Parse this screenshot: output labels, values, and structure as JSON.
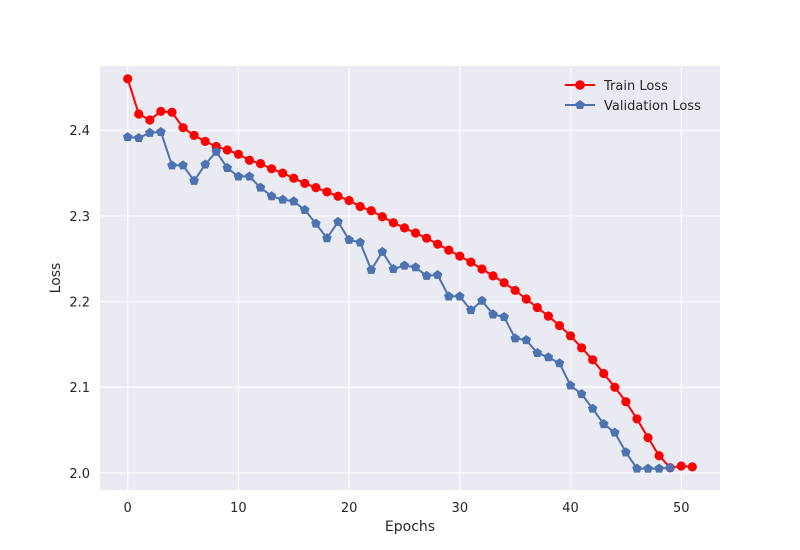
{
  "chart_data": {
    "type": "line",
    "xlabel": "Epochs",
    "ylabel": "Loss",
    "xlim": [
      -2.5,
      53.5
    ],
    "ylim": [
      1.98,
      2.475
    ],
    "xticks": [
      0,
      10,
      20,
      30,
      40,
      50
    ],
    "xtick_labels": [
      "0",
      "10",
      "20",
      "30",
      "40",
      "50"
    ],
    "yticks": [
      2.0,
      2.1,
      2.2,
      2.3,
      2.4
    ],
    "ytick_labels": [
      "2.0",
      "2.1",
      "2.2",
      "2.3",
      "2.4"
    ],
    "grid": true,
    "legend_position": "top-right",
    "series": [
      {
        "name": "Train Loss",
        "color": "#ff0000",
        "marker": "circle",
        "x": [
          0,
          1,
          2,
          3,
          4,
          5,
          6,
          7,
          8,
          9,
          10,
          11,
          12,
          13,
          14,
          15,
          16,
          17,
          18,
          19,
          20,
          21,
          22,
          23,
          24,
          25,
          26,
          27,
          28,
          29,
          30,
          31,
          32,
          33,
          34,
          35,
          36,
          37,
          38,
          39,
          40,
          41,
          42,
          43,
          44,
          45,
          46,
          47,
          48,
          49,
          50,
          51
        ],
        "values": [
          2.46,
          2.419,
          2.412,
          2.422,
          2.421,
          2.403,
          2.394,
          2.387,
          2.381,
          2.377,
          2.372,
          2.365,
          2.361,
          2.355,
          2.35,
          2.344,
          2.338,
          2.333,
          2.328,
          2.323,
          2.318,
          2.311,
          2.306,
          2.299,
          2.292,
          2.286,
          2.28,
          2.274,
          2.267,
          2.26,
          2.253,
          2.246,
          2.238,
          2.23,
          2.222,
          2.213,
          2.203,
          2.193,
          2.183,
          2.172,
          2.16,
          2.146,
          2.132,
          2.116,
          2.1,
          2.083,
          2.063,
          2.041,
          2.02,
          2.006,
          2.008,
          2.007
        ]
      },
      {
        "name": "Validation Loss",
        "color": "#4c72b0",
        "marker": "pentagon",
        "x": [
          0,
          1,
          2,
          3,
          4,
          5,
          6,
          7,
          8,
          9,
          10,
          11,
          12,
          13,
          14,
          15,
          16,
          17,
          18,
          19,
          20,
          21,
          22,
          23,
          24,
          25,
          26,
          27,
          28,
          29,
          30,
          31,
          32,
          33,
          34,
          35,
          36,
          37,
          38,
          39,
          40,
          41,
          42,
          43,
          44,
          45,
          46,
          47,
          48,
          49
        ],
        "values": [
          2.392,
          2.391,
          2.397,
          2.398,
          2.359,
          2.359,
          2.341,
          2.36,
          2.375,
          2.356,
          2.346,
          2.346,
          2.333,
          2.323,
          2.319,
          2.317,
          2.307,
          2.291,
          2.274,
          2.293,
          2.272,
          2.269,
          2.237,
          2.258,
          2.238,
          2.242,
          2.24,
          2.23,
          2.231,
          2.206,
          2.206,
          2.19,
          2.201,
          2.185,
          2.182,
          2.157,
          2.155,
          2.14,
          2.135,
          2.128,
          2.102,
          2.092,
          2.075,
          2.057,
          2.047,
          2.024,
          2.005,
          2.005,
          2.005,
          2.006
        ]
      }
    ]
  }
}
